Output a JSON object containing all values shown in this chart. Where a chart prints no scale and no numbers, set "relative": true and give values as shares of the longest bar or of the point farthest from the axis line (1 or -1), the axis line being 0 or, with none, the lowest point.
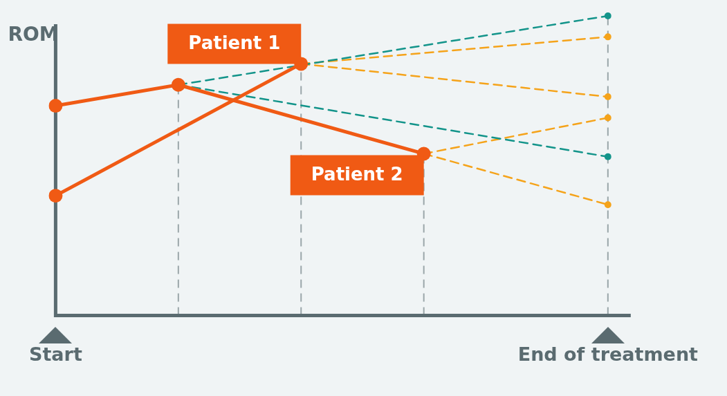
{
  "chart_data": {
    "type": "line",
    "relative": true,
    "ylabel": "ROM",
    "categories": [
      "Start",
      null,
      null,
      null,
      null,
      null,
      null,
      null,
      null,
      "End of treatment"
    ],
    "grid": "x",
    "legend": false,
    "marker": "circle",
    "series": [
      {
        "name": "Patient 1",
        "color": "#f05a14",
        "values": [
          0.4,
          null,
          null,
          null,
          0.84,
          null,
          null,
          null,
          null,
          null
        ],
        "line_style": "solid"
      },
      {
        "name": "Patient 2",
        "color": "#f05a14",
        "values": [
          0.7,
          null,
          0.77,
          null,
          null,
          null,
          0.54,
          null,
          null,
          null
        ],
        "line_style": "solid"
      },
      {
        "color": "#13948a",
        "values": [
          null,
          null,
          0.77,
          null,
          null,
          null,
          null,
          null,
          null,
          1.0
        ],
        "line_style": "dashed"
      },
      {
        "color": "#13948a",
        "values": [
          null,
          null,
          0.77,
          null,
          null,
          null,
          null,
          null,
          null,
          0.53
        ],
        "line_style": "dashed"
      },
      {
        "color": "#f5a31a",
        "values": [
          null,
          null,
          null,
          null,
          0.84,
          null,
          null,
          null,
          null,
          0.93
        ],
        "line_style": "dashed"
      },
      {
        "color": "#f5a31a",
        "values": [
          null,
          null,
          null,
          null,
          0.84,
          null,
          null,
          null,
          null,
          0.73
        ],
        "line_style": "dashed"
      },
      {
        "color": "#f5a31a",
        "values": [
          null,
          null,
          null,
          null,
          null,
          null,
          0.54,
          null,
          null,
          0.66
        ],
        "line_style": "dashed"
      },
      {
        "color": "#f5a31a",
        "values": [
          null,
          null,
          null,
          null,
          null,
          null,
          0.54,
          null,
          null,
          0.37
        ],
        "line_style": "dashed"
      }
    ]
  }
}
